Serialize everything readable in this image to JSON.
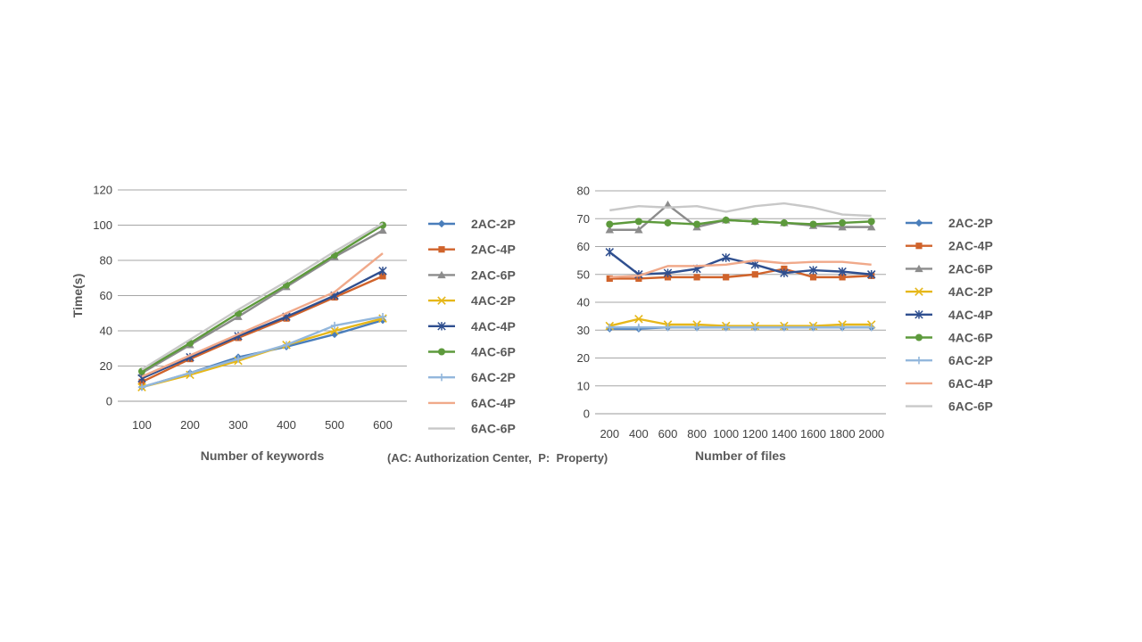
{
  "footnote": "(AC: Authorization Center,  P:  Property)",
  "series_styles": [
    {
      "name": "2AC-2P",
      "color": "#4a7ebb",
      "marker": "diamond"
    },
    {
      "name": "2AC-4P",
      "color": "#d0632b",
      "marker": "square"
    },
    {
      "name": "2AC-6P",
      "color": "#8c8c8c",
      "marker": "triangle"
    },
    {
      "name": "4AC-2P",
      "color": "#e6b719",
      "marker": "x"
    },
    {
      "name": "4AC-4P",
      "color": "#2f4f8f",
      "marker": "star"
    },
    {
      "name": "4AC-6P",
      "color": "#5d9a3c",
      "marker": "circle"
    },
    {
      "name": "6AC-2P",
      "color": "#93b7dc",
      "marker": "plus"
    },
    {
      "name": "6AC-4P",
      "color": "#f0a98a",
      "marker": "none"
    },
    {
      "name": "6AC-6P",
      "color": "#c8c8c8",
      "marker": "none"
    }
  ],
  "chart_data": [
    {
      "type": "line",
      "title": "",
      "xlabel": "Number of keywords",
      "ylabel": "Time(s)",
      "x": [
        100,
        200,
        300,
        400,
        500,
        600
      ],
      "ylim": [
        0,
        120
      ],
      "yticks": [
        0,
        20,
        40,
        60,
        80,
        100,
        120
      ],
      "grid": true,
      "legend": "right",
      "series": [
        {
          "name": "2AC-2P",
          "values": [
            8,
            16,
            25,
            31,
            38,
            46
          ]
        },
        {
          "name": "2AC-4P",
          "values": [
            11,
            24,
            36,
            47,
            59,
            71
          ]
        },
        {
          "name": "2AC-6P",
          "values": [
            16,
            32,
            48,
            65,
            82,
            97
          ]
        },
        {
          "name": "4AC-2P",
          "values": [
            8,
            15,
            23,
            32,
            40,
            47
          ]
        },
        {
          "name": "4AC-4P",
          "values": [
            13,
            25,
            37,
            48,
            60,
            74
          ]
        },
        {
          "name": "4AC-6P",
          "values": [
            17,
            33,
            50,
            66,
            83,
            100
          ]
        },
        {
          "name": "6AC-2P",
          "values": [
            8,
            16,
            24,
            32,
            43,
            48
          ]
        },
        {
          "name": "6AC-4P",
          "values": [
            14,
            26,
            38,
            50,
            62,
            84
          ]
        },
        {
          "name": "6AC-6P",
          "values": [
            18,
            35,
            52,
            68,
            85,
            101
          ]
        }
      ]
    },
    {
      "type": "line",
      "title": "",
      "xlabel": "Number of files",
      "ylabel": "",
      "x": [
        200,
        400,
        600,
        800,
        1000,
        1200,
        1400,
        1600,
        1800,
        2000
      ],
      "ylim": [
        0,
        80
      ],
      "yticks": [
        0,
        10,
        20,
        30,
        40,
        50,
        60,
        70,
        80
      ],
      "grid": true,
      "legend": "right",
      "series": [
        {
          "name": "2AC-2P",
          "values": [
            30.5,
            30.5,
            31,
            31,
            31,
            31,
            31,
            31,
            31,
            31
          ]
        },
        {
          "name": "2AC-4P",
          "values": [
            48.5,
            48.5,
            49,
            49,
            49,
            50,
            52,
            49,
            49,
            49.5
          ]
        },
        {
          "name": "2AC-6P",
          "values": [
            66,
            66,
            75,
            67,
            69.5,
            69,
            68.5,
            67.5,
            67,
            67
          ]
        },
        {
          "name": "4AC-2P",
          "values": [
            31.5,
            34,
            32,
            32,
            31.5,
            31.5,
            31.5,
            31.5,
            32,
            32
          ]
        },
        {
          "name": "4AC-4P",
          "values": [
            58,
            50,
            50.5,
            52,
            56,
            53.5,
            50.5,
            51.5,
            51,
            50
          ]
        },
        {
          "name": "4AC-6P",
          "values": [
            68,
            69,
            68.5,
            68,
            69.5,
            69,
            68.5,
            68,
            68.5,
            69
          ]
        },
        {
          "name": "6AC-2P",
          "values": [
            31,
            31,
            31,
            31,
            31,
            31,
            31,
            31,
            31,
            31
          ]
        },
        {
          "name": "6AC-4P",
          "values": [
            49,
            49.5,
            53,
            53,
            53.5,
            55,
            54,
            54.5,
            54.5,
            53.5
          ]
        },
        {
          "name": "6AC-6P",
          "values": [
            73,
            74.5,
            74,
            74.5,
            72.5,
            74.5,
            75.5,
            74,
            71.5,
            71
          ]
        }
      ]
    }
  ]
}
